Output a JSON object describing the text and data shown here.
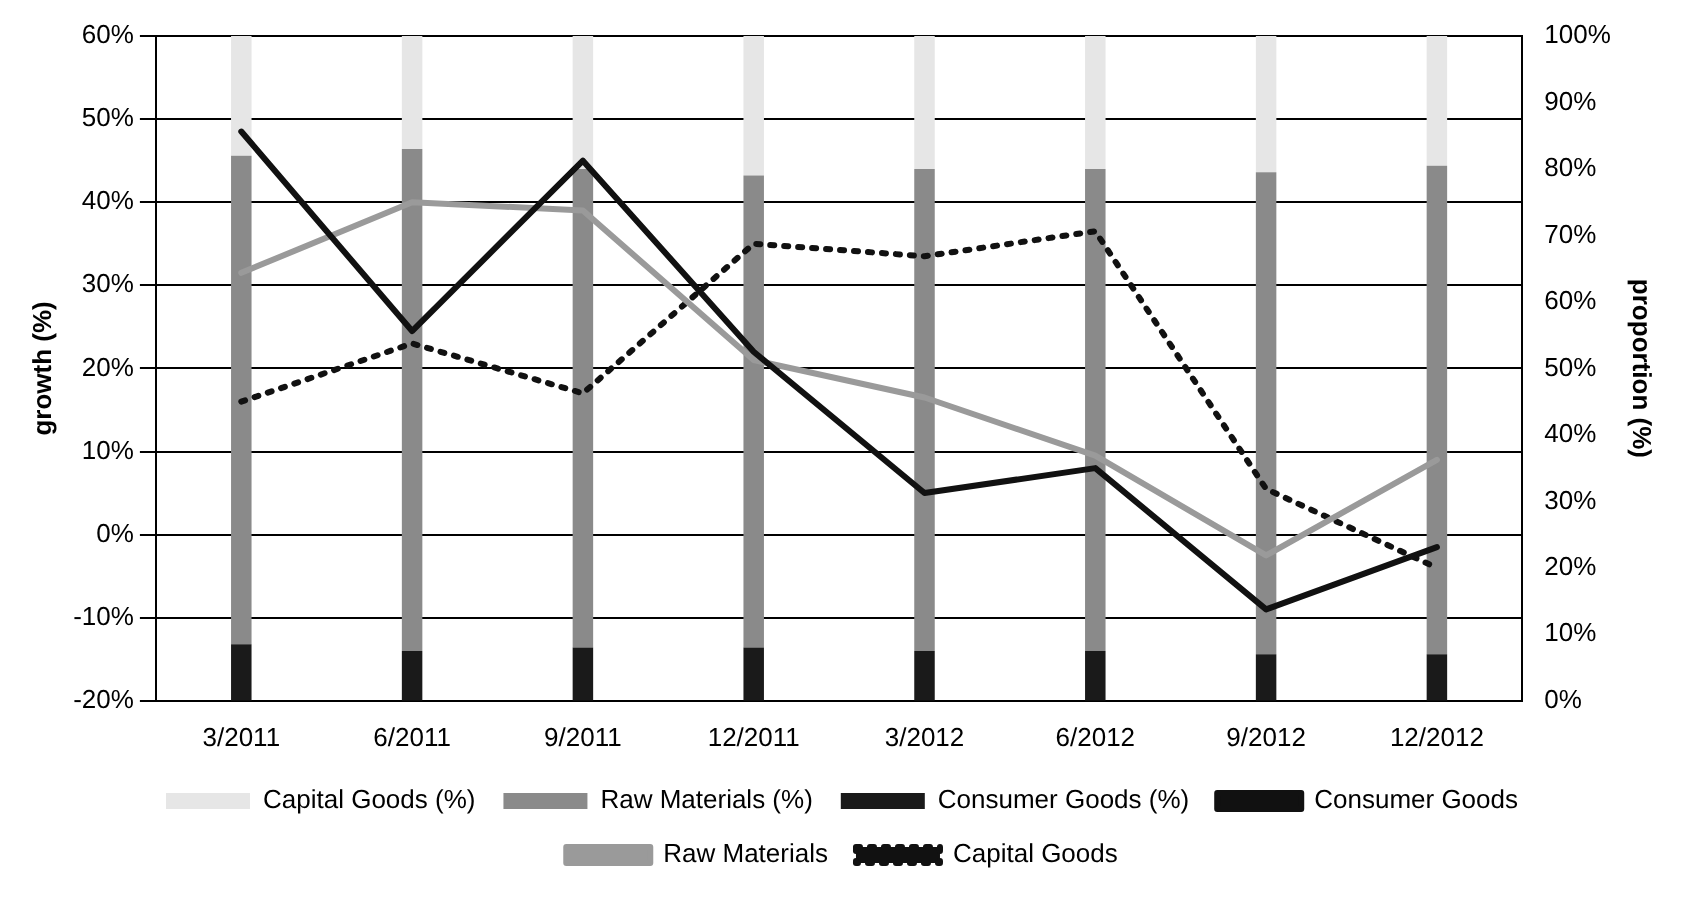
{
  "chart_data": {
    "type": "bar",
    "xlabel": null,
    "ylabel": "growth (%)",
    "y2label": "proportion (%)",
    "categories": [
      "3/2011",
      "6/2011",
      "9/2011",
      "12/2011",
      "3/2012",
      "6/2012",
      "9/2012",
      "12/2012"
    ],
    "stacked": true,
    "grid": "y",
    "legend": "bottom",
    "marker": "none",
    "ylim": [
      -20,
      60
    ],
    "yticks": [
      {
        "value": -20,
        "label": "-20%"
      },
      {
        "value": -10,
        "label": "-10%"
      },
      {
        "value": 0,
        "label": "0%"
      },
      {
        "value": 10,
        "label": "10%"
      },
      {
        "value": 20,
        "label": "20%"
      },
      {
        "value": 30,
        "label": "30%"
      },
      {
        "value": 40,
        "label": "40%"
      },
      {
        "value": 50,
        "label": "50%"
      },
      {
        "value": 60,
        "label": "60%"
      }
    ],
    "y2lim": [
      0,
      100
    ],
    "y2ticks": [
      {
        "value": 0,
        "label": "0%"
      },
      {
        "value": 10,
        "label": "10%"
      },
      {
        "value": 20,
        "label": "20%"
      },
      {
        "value": 30,
        "label": "30%"
      },
      {
        "value": 40,
        "label": "40%"
      },
      {
        "value": 50,
        "label": "50%"
      },
      {
        "value": 60,
        "label": "60%"
      },
      {
        "value": 70,
        "label": "70%"
      },
      {
        "value": 80,
        "label": "80%"
      },
      {
        "value": 90,
        "label": "90%"
      },
      {
        "value": 100,
        "label": "100%"
      }
    ],
    "series": [
      {
        "name": "Consumer Goods (%)",
        "axis": "y2",
        "color": "#1a1a1a",
        "values": [
          8.5,
          7.5,
          8,
          8,
          7.5,
          7.5,
          7,
          7
        ]
      },
      {
        "name": "Raw Materials (%)",
        "axis": "y2",
        "color": "#8a8a8a",
        "values": [
          73.5,
          75.5,
          72,
          71,
          72.5,
          72.5,
          72.5,
          73.5
        ]
      },
      {
        "name": "Capital Goods (%)",
        "axis": "y2",
        "color": "#e6e6e6",
        "values": [
          18,
          17,
          20,
          21,
          20,
          20,
          20.5,
          19.5
        ]
      },
      {
        "name": "Consumer Goods",
        "type": "line",
        "axis": "y",
        "color": "#111111",
        "line_style": "solid",
        "values": [
          48.5,
          24.5,
          45,
          22,
          5,
          8,
          -9,
          -1.5
        ]
      },
      {
        "name": "Raw Materials",
        "type": "line",
        "axis": "y",
        "color": "#9a9a9a",
        "line_style": "solid",
        "values": [
          31.5,
          40,
          39,
          21,
          16.5,
          9.5,
          -2.5,
          9
        ]
      },
      {
        "name": "Capital Goods",
        "type": "line",
        "axis": "y",
        "color": "#111111",
        "line_style": "dotted",
        "values": [
          16,
          23,
          17,
          35,
          33.5,
          36.5,
          5.5,
          -4
        ]
      }
    ]
  }
}
